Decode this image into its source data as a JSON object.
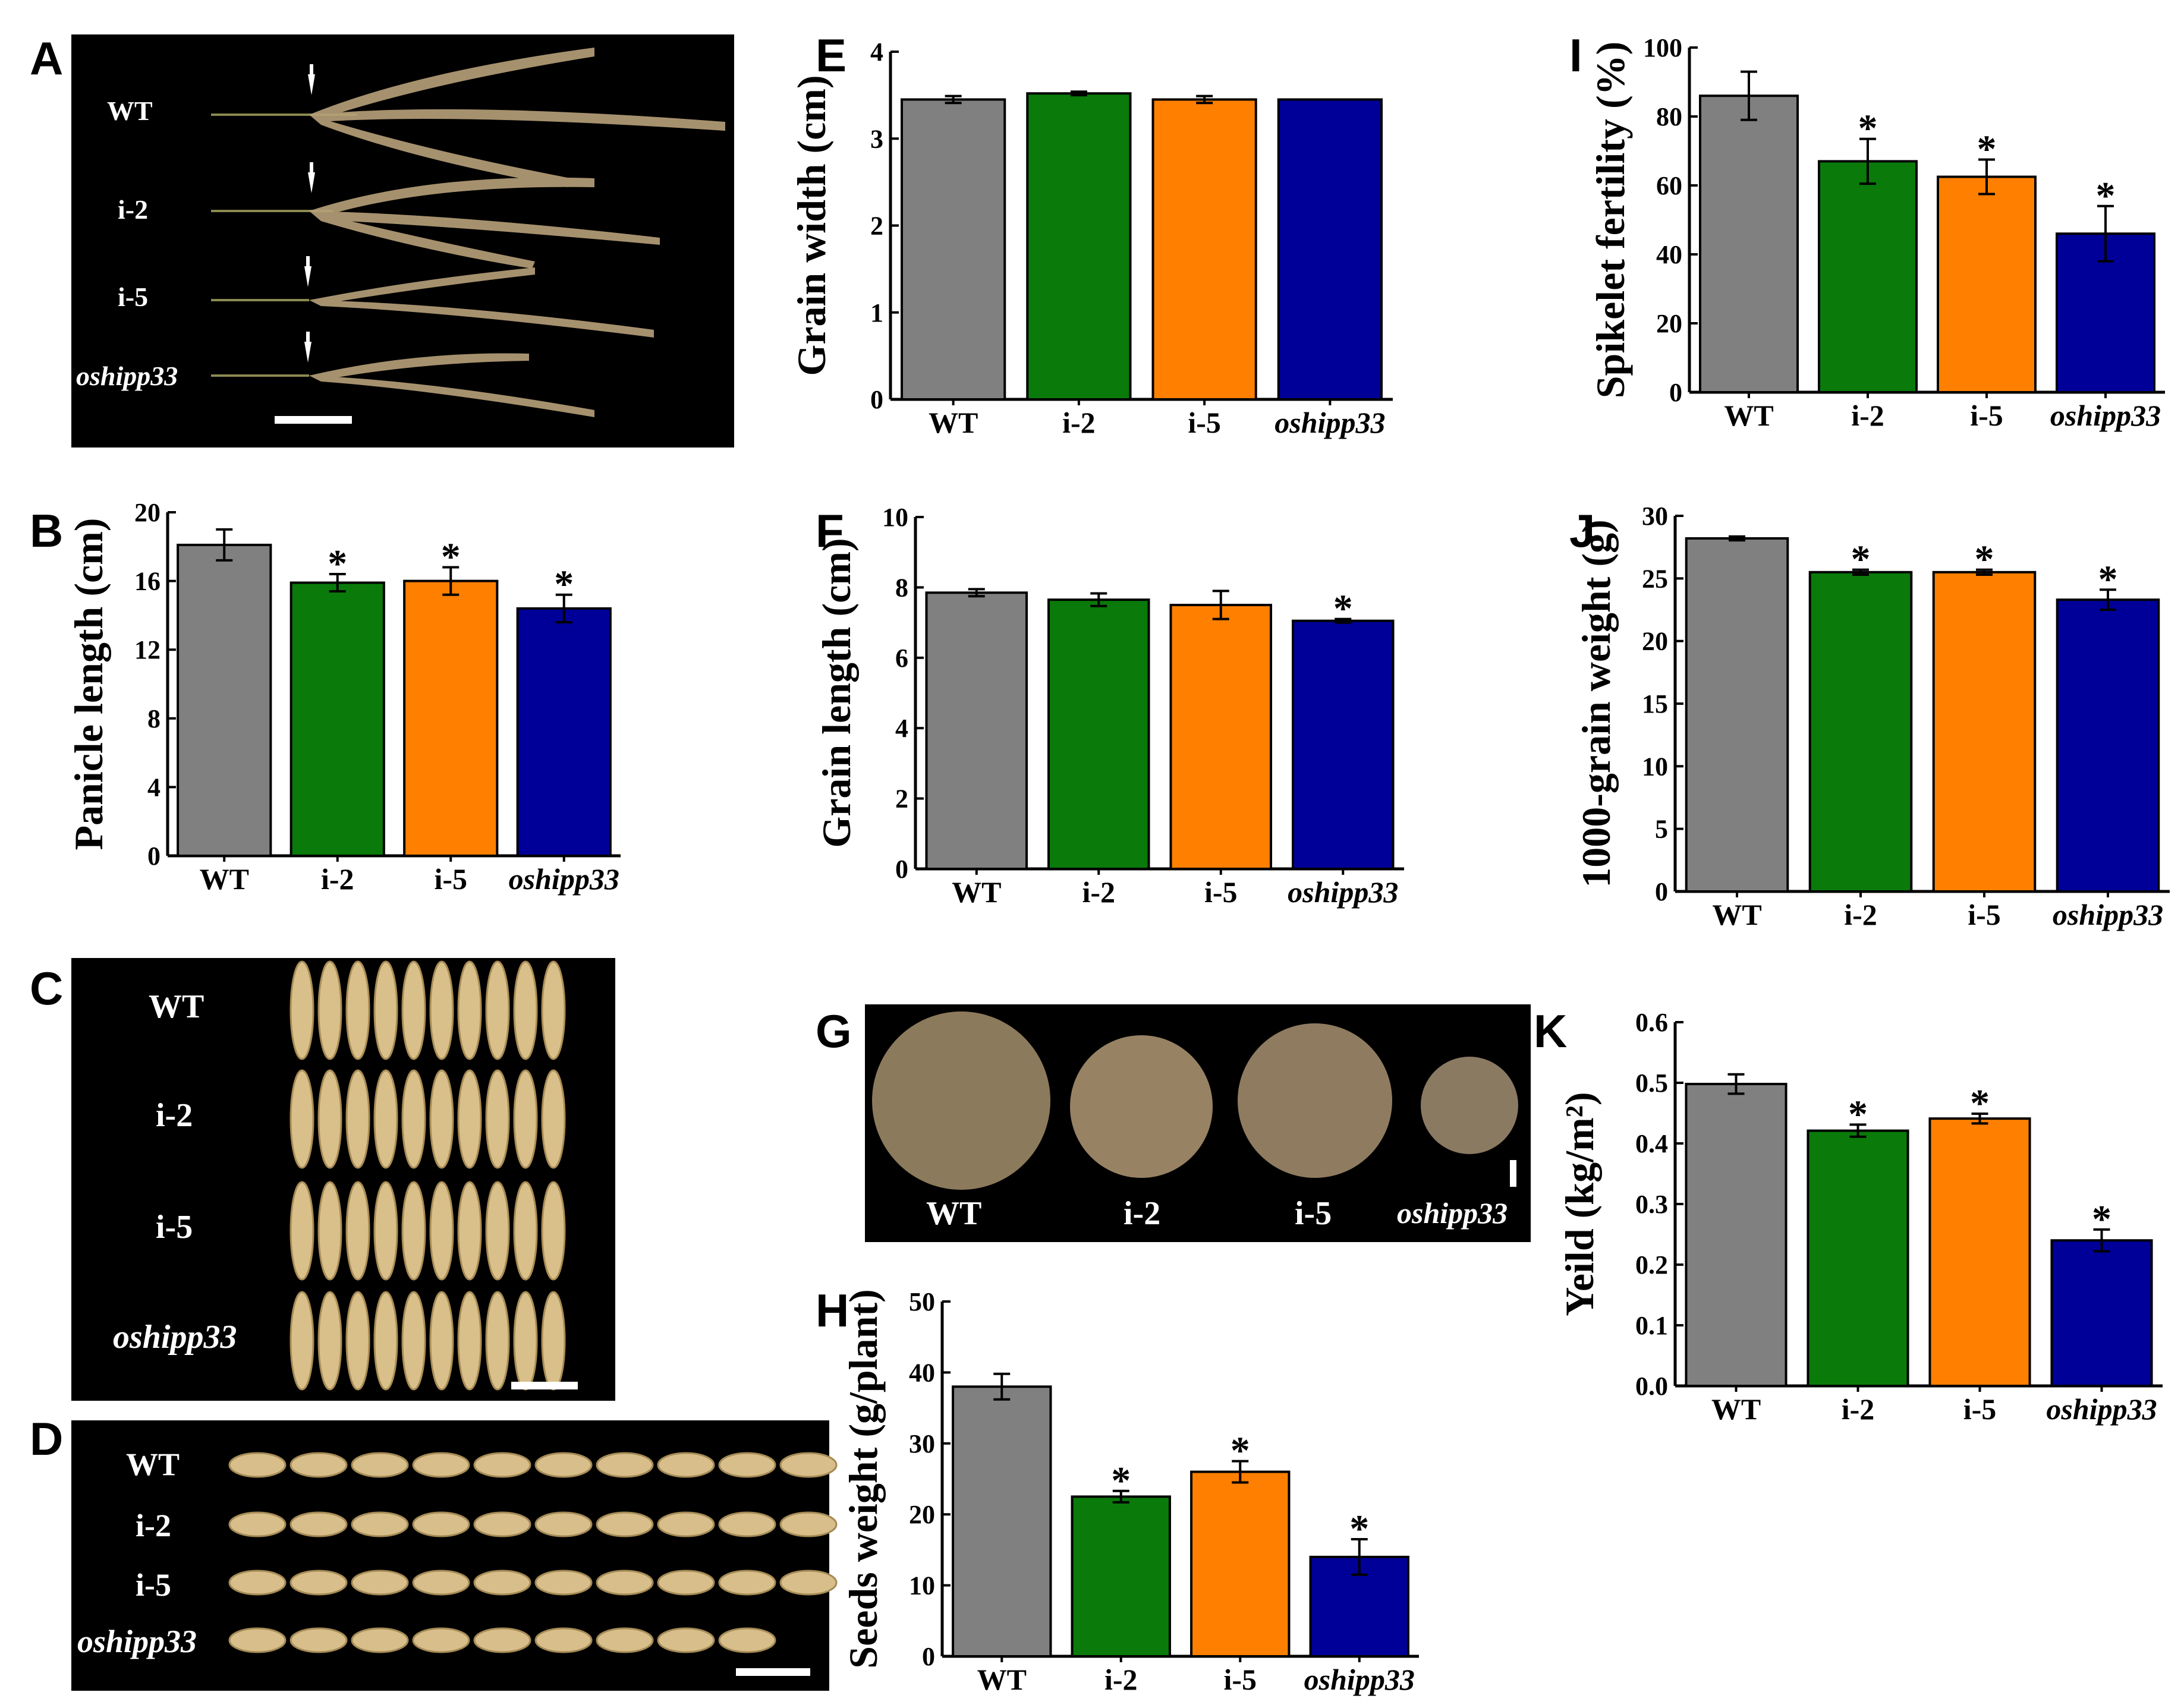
{
  "figure": {
    "panel_letters": [
      "A",
      "B",
      "C",
      "D",
      "E",
      "F",
      "G",
      "H",
      "I",
      "J",
      "K"
    ],
    "colors": {
      "WT": "#808080",
      "i-2": "#0a7a0a",
      "i-5": "#ff7f00",
      "oshipp33": "#000099"
    },
    "photos": {
      "A": {
        "rows": [
          "WT",
          "i-2",
          "i-5",
          "oshipp33"
        ]
      },
      "C": {
        "rows": [
          "WT",
          "i-2",
          "i-5",
          "oshipp33"
        ]
      },
      "D": {
        "rows": [
          "WT",
          "i-2",
          "i-5",
          "oshipp33"
        ]
      },
      "G": {
        "labels": [
          "WT",
          "i-2",
          "i-5",
          "oshipp33"
        ]
      }
    }
  },
  "chart_data": [
    {
      "panel": "B",
      "type": "bar",
      "categories": [
        "WT",
        "i-2",
        "i-5",
        "oshipp33"
      ],
      "values": [
        18.1,
        15.9,
        16.0,
        14.4
      ],
      "errors": [
        0.9,
        0.5,
        0.8,
        0.8
      ],
      "significant": [
        false,
        true,
        true,
        true
      ],
      "ylabel": "Panicle length (cm)",
      "ylim": [
        0,
        20
      ],
      "yticks": [
        "0",
        "4",
        "8",
        "12",
        "16",
        "20"
      ]
    },
    {
      "panel": "E",
      "type": "bar",
      "categories": [
        "WT",
        "i-2",
        "i-5",
        "oshipp33"
      ],
      "values": [
        3.45,
        3.52,
        3.45,
        3.45
      ],
      "errors": [
        0.04,
        0.02,
        0.04,
        0.0
      ],
      "significant": [
        false,
        false,
        false,
        false
      ],
      "ylabel": "Grain width (cm)",
      "ylim": [
        0,
        4
      ],
      "yticks": [
        "0",
        "1",
        "2",
        "3",
        "4"
      ]
    },
    {
      "panel": "F",
      "type": "bar",
      "categories": [
        "WT",
        "i-2",
        "i-5",
        "oshipp33"
      ],
      "values": [
        7.85,
        7.65,
        7.5,
        7.05
      ],
      "errors": [
        0.1,
        0.18,
        0.4,
        0.05
      ],
      "significant": [
        false,
        false,
        false,
        true
      ],
      "ylabel": "Grain length (cm)",
      "ylim": [
        0,
        10
      ],
      "yticks": [
        "0",
        "2",
        "4",
        "6",
        "8",
        "10"
      ]
    },
    {
      "panel": "H",
      "type": "bar",
      "categories": [
        "WT",
        "i-2",
        "i-5",
        "oshipp33"
      ],
      "values": [
        38,
        22.5,
        26,
        14
      ],
      "errors": [
        1.8,
        0.8,
        1.5,
        2.5
      ],
      "significant": [
        false,
        true,
        true,
        true
      ],
      "ylabel": "Seeds weight (g/plant)",
      "ylim": [
        0,
        50
      ],
      "yticks": [
        "0",
        "10",
        "20",
        "30",
        "40",
        "50"
      ]
    },
    {
      "panel": "I",
      "type": "bar",
      "categories": [
        "WT",
        "i-2",
        "i-5",
        "oshipp33"
      ],
      "values": [
        86,
        67,
        62.5,
        46
      ],
      "errors": [
        7,
        6.5,
        5,
        8
      ],
      "significant": [
        false,
        true,
        true,
        true
      ],
      "ylabel": "Spikelet fertility (%)",
      "ylim": [
        0,
        100
      ],
      "yticks": [
        "0",
        "20",
        "40",
        "60",
        "80",
        "100"
      ]
    },
    {
      "panel": "J",
      "type": "bar",
      "categories": [
        "WT",
        "i-2",
        "i-5",
        "oshipp33"
      ],
      "values": [
        28.2,
        25.5,
        25.5,
        23.3
      ],
      "errors": [
        0.15,
        0.2,
        0.2,
        0.8
      ],
      "significant": [
        false,
        true,
        true,
        true
      ],
      "ylabel": "1000-grain weight (g)",
      "ylim": [
        0,
        30
      ],
      "yticks": [
        "0",
        "5",
        "10",
        "15",
        "20",
        "25",
        "30"
      ]
    },
    {
      "panel": "K",
      "type": "bar",
      "categories": [
        "WT",
        "i-2",
        "i-5",
        "oshipp33"
      ],
      "values": [
        0.498,
        0.421,
        0.441,
        0.24
      ],
      "errors": [
        0.016,
        0.01,
        0.008,
        0.018
      ],
      "significant": [
        false,
        true,
        true,
        true
      ],
      "ylabel": "Yeild (kg/m²)",
      "ylim": [
        0,
        0.6
      ],
      "yticks": [
        "0.0",
        "0.1",
        "0.2",
        "0.3",
        "0.4",
        "0.5",
        "0.6"
      ]
    }
  ]
}
